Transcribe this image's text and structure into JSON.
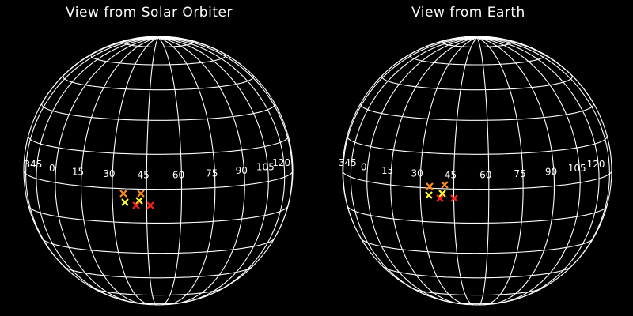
{
  "panels": [
    {
      "id": "left",
      "title": "View from Solar Orbiter",
      "longitude_labels": [
        "345",
        "0",
        "15",
        "30",
        "45",
        "60",
        "75",
        "90",
        "105",
        "120"
      ],
      "markers": [
        {
          "color": "#ff8c1a",
          "label": "orange-marker-1"
        },
        {
          "color": "#ff8c1a",
          "label": "orange-marker-2"
        },
        {
          "color": "#ffff33",
          "label": "yellow-marker-1"
        },
        {
          "color": "#ffff33",
          "label": "yellow-marker-2"
        },
        {
          "color": "#ff2020",
          "label": "red-marker-1"
        },
        {
          "color": "#ff2020",
          "label": "red-marker-2"
        }
      ]
    },
    {
      "id": "right",
      "title": "View from Earth",
      "longitude_labels": [
        "345",
        "0",
        "15",
        "30",
        "45",
        "60",
        "75",
        "90",
        "105",
        "120"
      ],
      "markers": [
        {
          "color": "#ff8c1a",
          "label": "orange-marker-1"
        },
        {
          "color": "#ff8c1a",
          "label": "orange-marker-2"
        },
        {
          "color": "#ffff33",
          "label": "yellow-marker-1"
        },
        {
          "color": "#ffff33",
          "label": "yellow-marker-2"
        },
        {
          "color": "#ff2020",
          "label": "red-marker-1"
        },
        {
          "color": "#ff2020",
          "label": "red-marker-2"
        }
      ]
    }
  ],
  "colors": {
    "background": "#000000",
    "grid": "#ffffff"
  }
}
